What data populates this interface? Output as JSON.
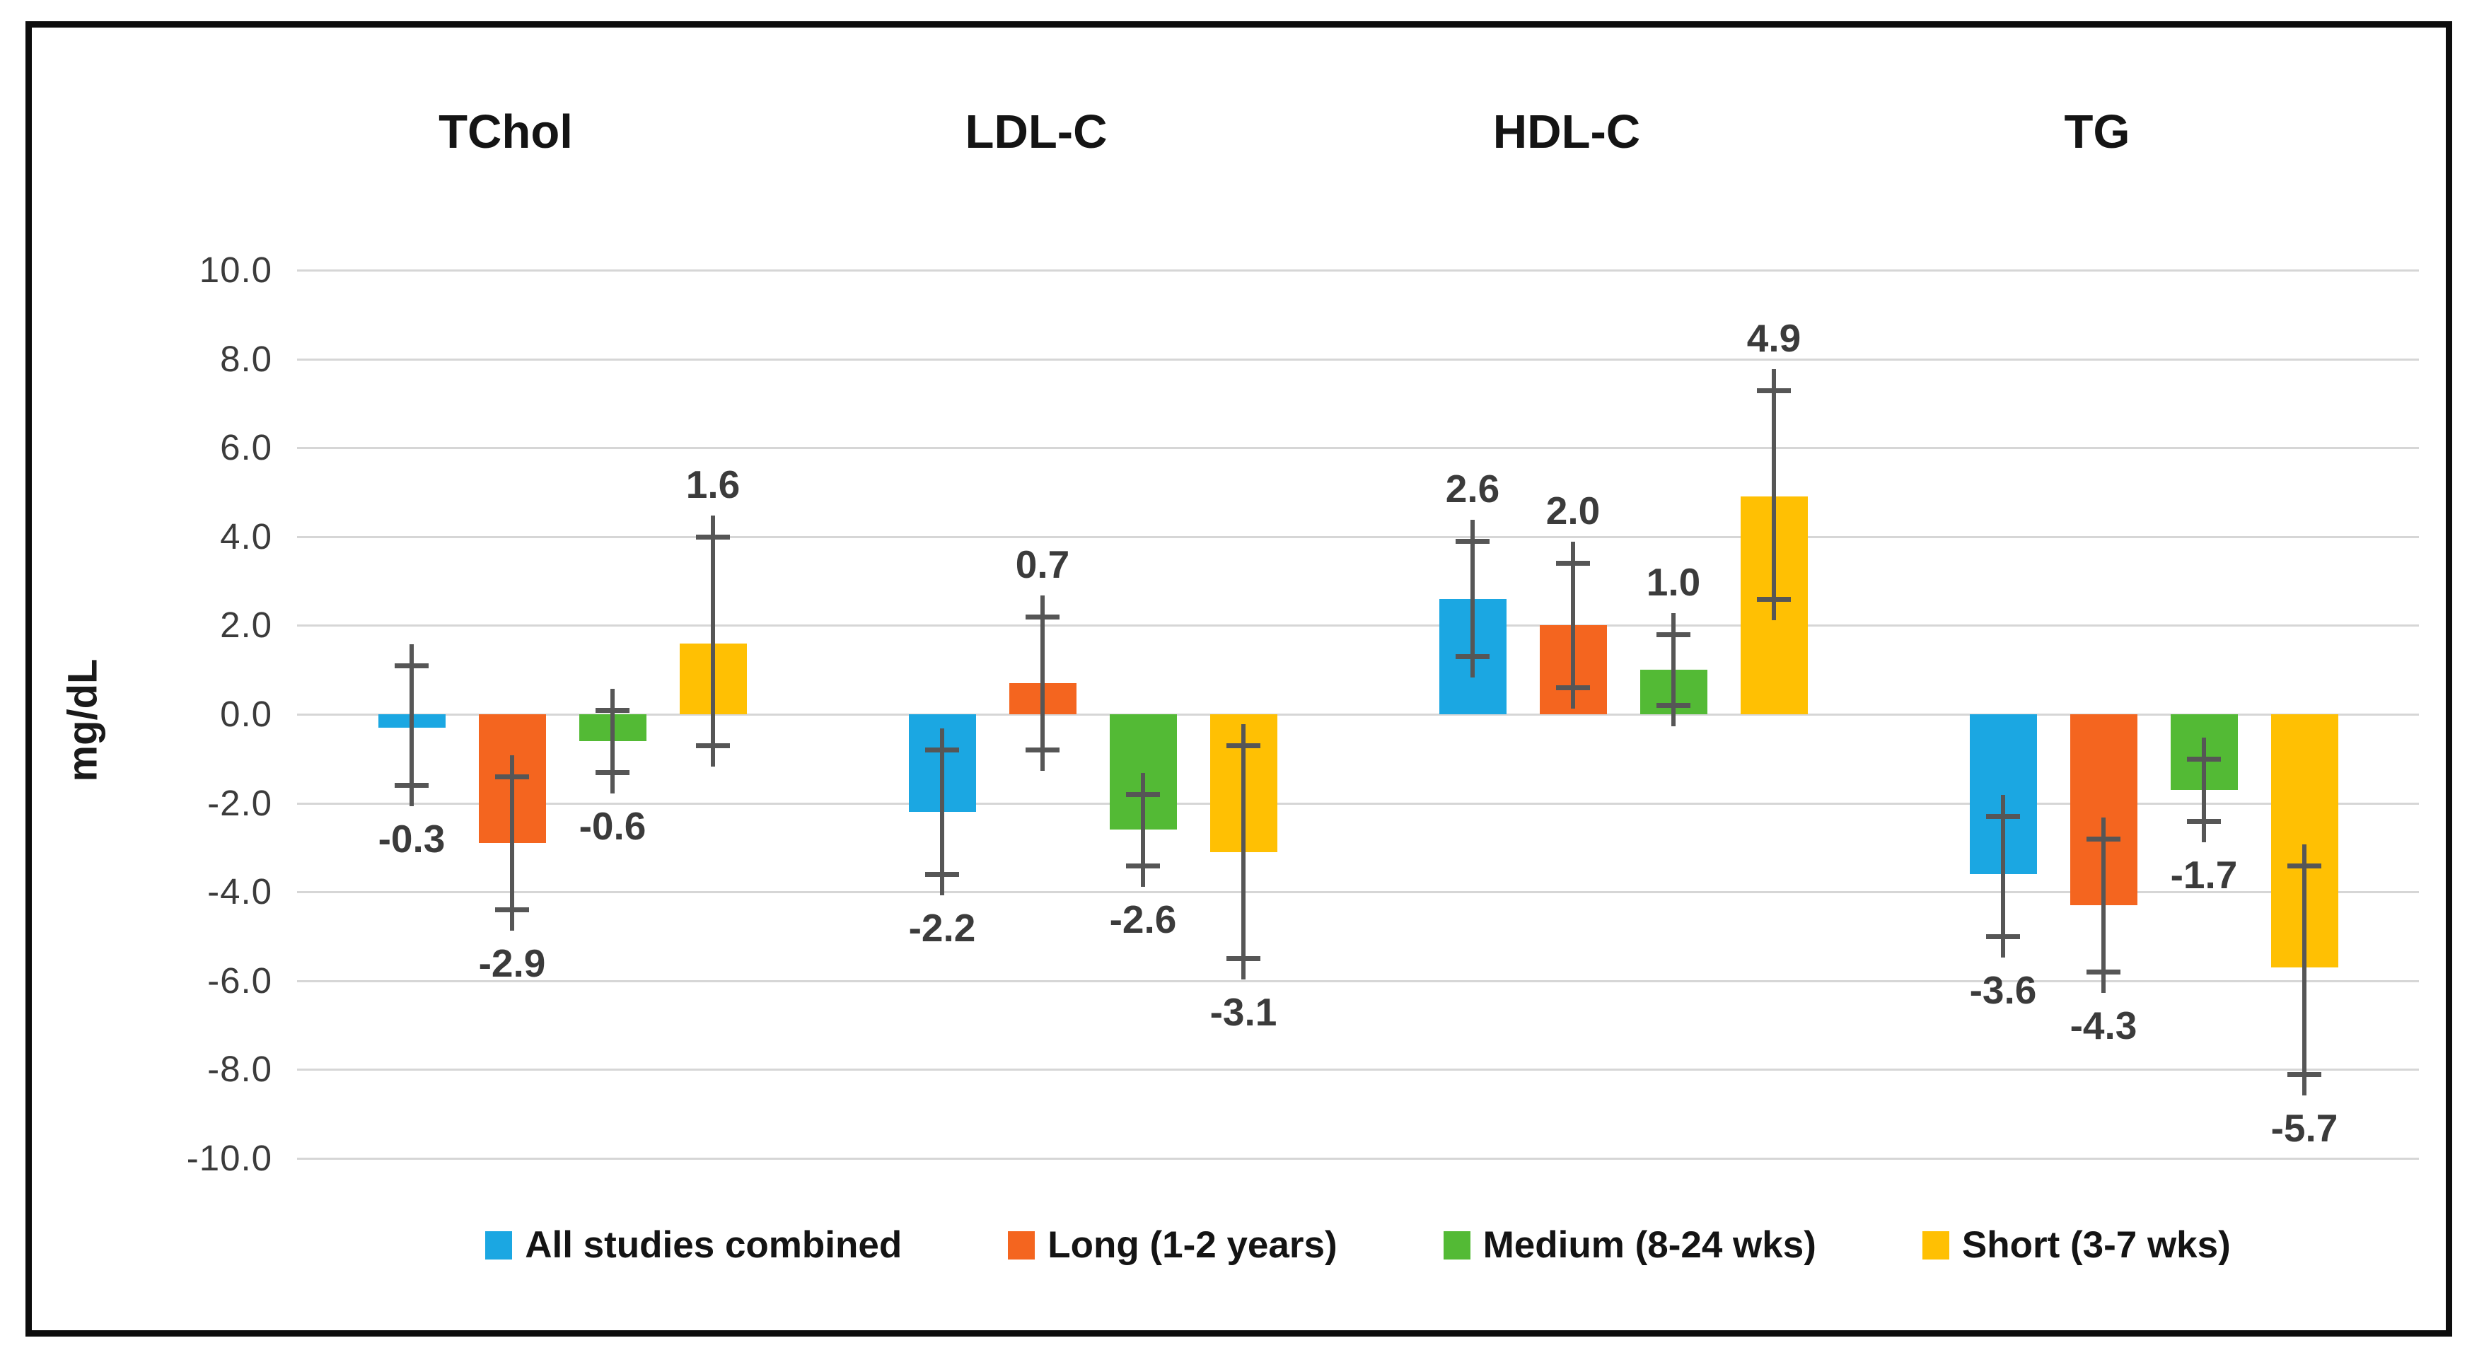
{
  "chart_data": {
    "type": "bar",
    "title": "",
    "xlabel": "",
    "ylabel": "mg/dL",
    "ylim": [
      -10,
      10
    ],
    "ytick_step": 2,
    "yticks": [
      "10.0",
      "8.0",
      "6.0",
      "4.0",
      "2.0",
      "0.0",
      "-2.0",
      "-4.0",
      "-6.0",
      "-8.0",
      "-10.0"
    ],
    "categories": [
      "TChol",
      "LDL-C",
      "HDL-C",
      "TG"
    ],
    "series": [
      {
        "name": "All studies combined",
        "color": "#1ba7e2",
        "values": [
          -0.3,
          -2.2,
          2.6,
          -3.6
        ],
        "labels": [
          "-0.3",
          "-2.2",
          "2.6",
          "-3.6"
        ],
        "error_low": [
          -1.6,
          -3.6,
          1.3,
          -5.0
        ],
        "error_high": [
          1.1,
          -0.8,
          3.9,
          -2.3
        ]
      },
      {
        "name": "Long (1-2 years)",
        "color": "#f4651f",
        "values": [
          -2.9,
          0.7,
          2.0,
          -4.3
        ],
        "labels": [
          "-2.9",
          "0.7",
          "2.0",
          "-4.3"
        ],
        "error_low": [
          -4.4,
          -0.8,
          0.6,
          -5.8
        ],
        "error_high": [
          -1.4,
          2.2,
          3.4,
          -2.8
        ]
      },
      {
        "name": "Medium (8-24 wks)",
        "color": "#53ba35",
        "values": [
          -0.6,
          -2.6,
          1.0,
          -1.7
        ],
        "labels": [
          "-0.6",
          "-2.6",
          "1.0",
          "-1.7"
        ],
        "error_low": [
          -1.3,
          -3.4,
          0.2,
          -2.4
        ],
        "error_high": [
          0.1,
          -1.8,
          1.8,
          -1.0
        ]
      },
      {
        "name": "Short (3-7 wks)",
        "color": "#ffc003",
        "values": [
          1.6,
          -3.1,
          4.9,
          -5.7
        ],
        "labels": [
          "1.6",
          "-3.1",
          "4.9",
          "-5.7"
        ],
        "error_low": [
          -0.7,
          -5.5,
          2.6,
          -8.1
        ],
        "error_high": [
          4.0,
          -0.7,
          7.3,
          -3.4
        ]
      }
    ],
    "grid": true,
    "legend_position": "bottom"
  }
}
